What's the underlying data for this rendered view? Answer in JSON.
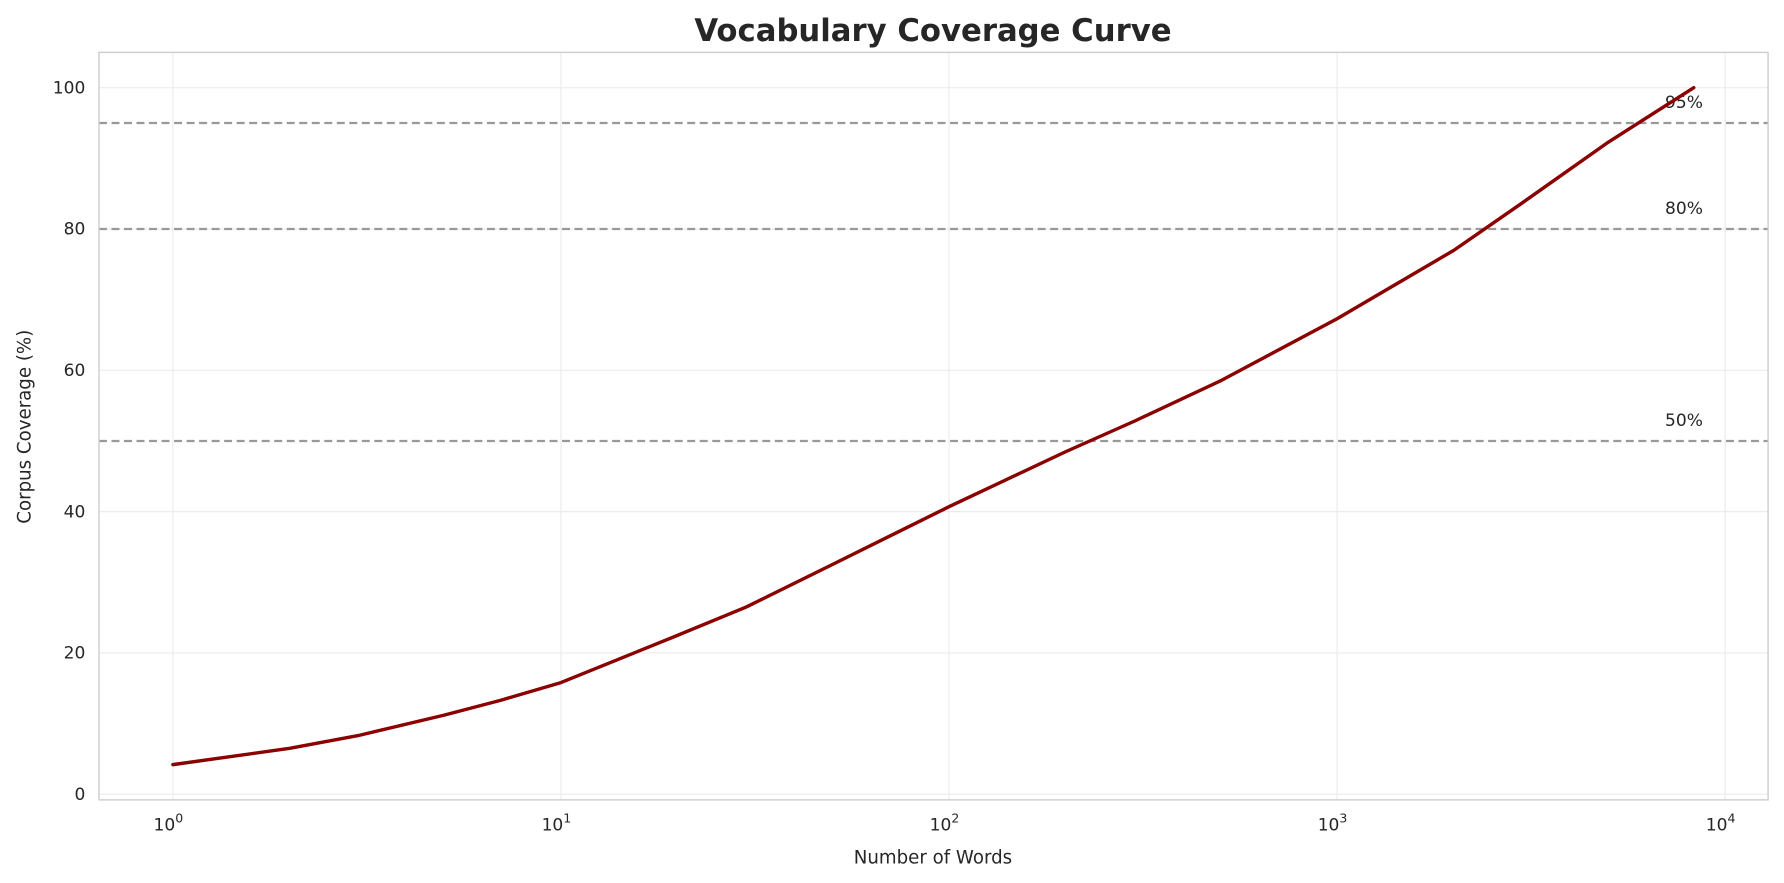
{
  "chart_data": {
    "type": "line",
    "title": "Vocabulary Coverage Curve",
    "xlabel": "Number of Words",
    "ylabel": "Corpus Coverage (%)",
    "xscale": "log",
    "xlim": [
      0.645,
      12900
    ],
    "ylim": [
      -0.8,
      105
    ],
    "grid": true,
    "x_ticks": [
      {
        "base": "10",
        "exp": "0",
        "value": 1
      },
      {
        "base": "10",
        "exp": "1",
        "value": 10
      },
      {
        "base": "10",
        "exp": "2",
        "value": 100
      },
      {
        "base": "10",
        "exp": "3",
        "value": 1000
      },
      {
        "base": "10",
        "exp": "4",
        "value": 10000
      }
    ],
    "y_ticks": [
      "0",
      "20",
      "40",
      "60",
      "80",
      "100"
    ],
    "series": [
      {
        "color": "#8b0000",
        "x": [
          1,
          2,
          3,
          5,
          7,
          10,
          20,
          30,
          50,
          100,
          200,
          300,
          500,
          1000,
          2000,
          3000,
          5000,
          8300
        ],
        "y": [
          4.2,
          6.5,
          8.3,
          11.2,
          13.3,
          15.8,
          22.5,
          26.5,
          32.5,
          40.7,
          48.5,
          52.8,
          58.5,
          67.3,
          77.0,
          83.7,
          92.3,
          100
        ]
      }
    ],
    "reference_lines": [
      {
        "y": 50,
        "label": "50%",
        "color": "#999999",
        "style": "dashed"
      },
      {
        "y": 80,
        "label": "80%",
        "color": "#999999",
        "style": "dashed"
      },
      {
        "y": 95,
        "label": "95%",
        "color": "#999999",
        "style": "dashed"
      }
    ]
  }
}
